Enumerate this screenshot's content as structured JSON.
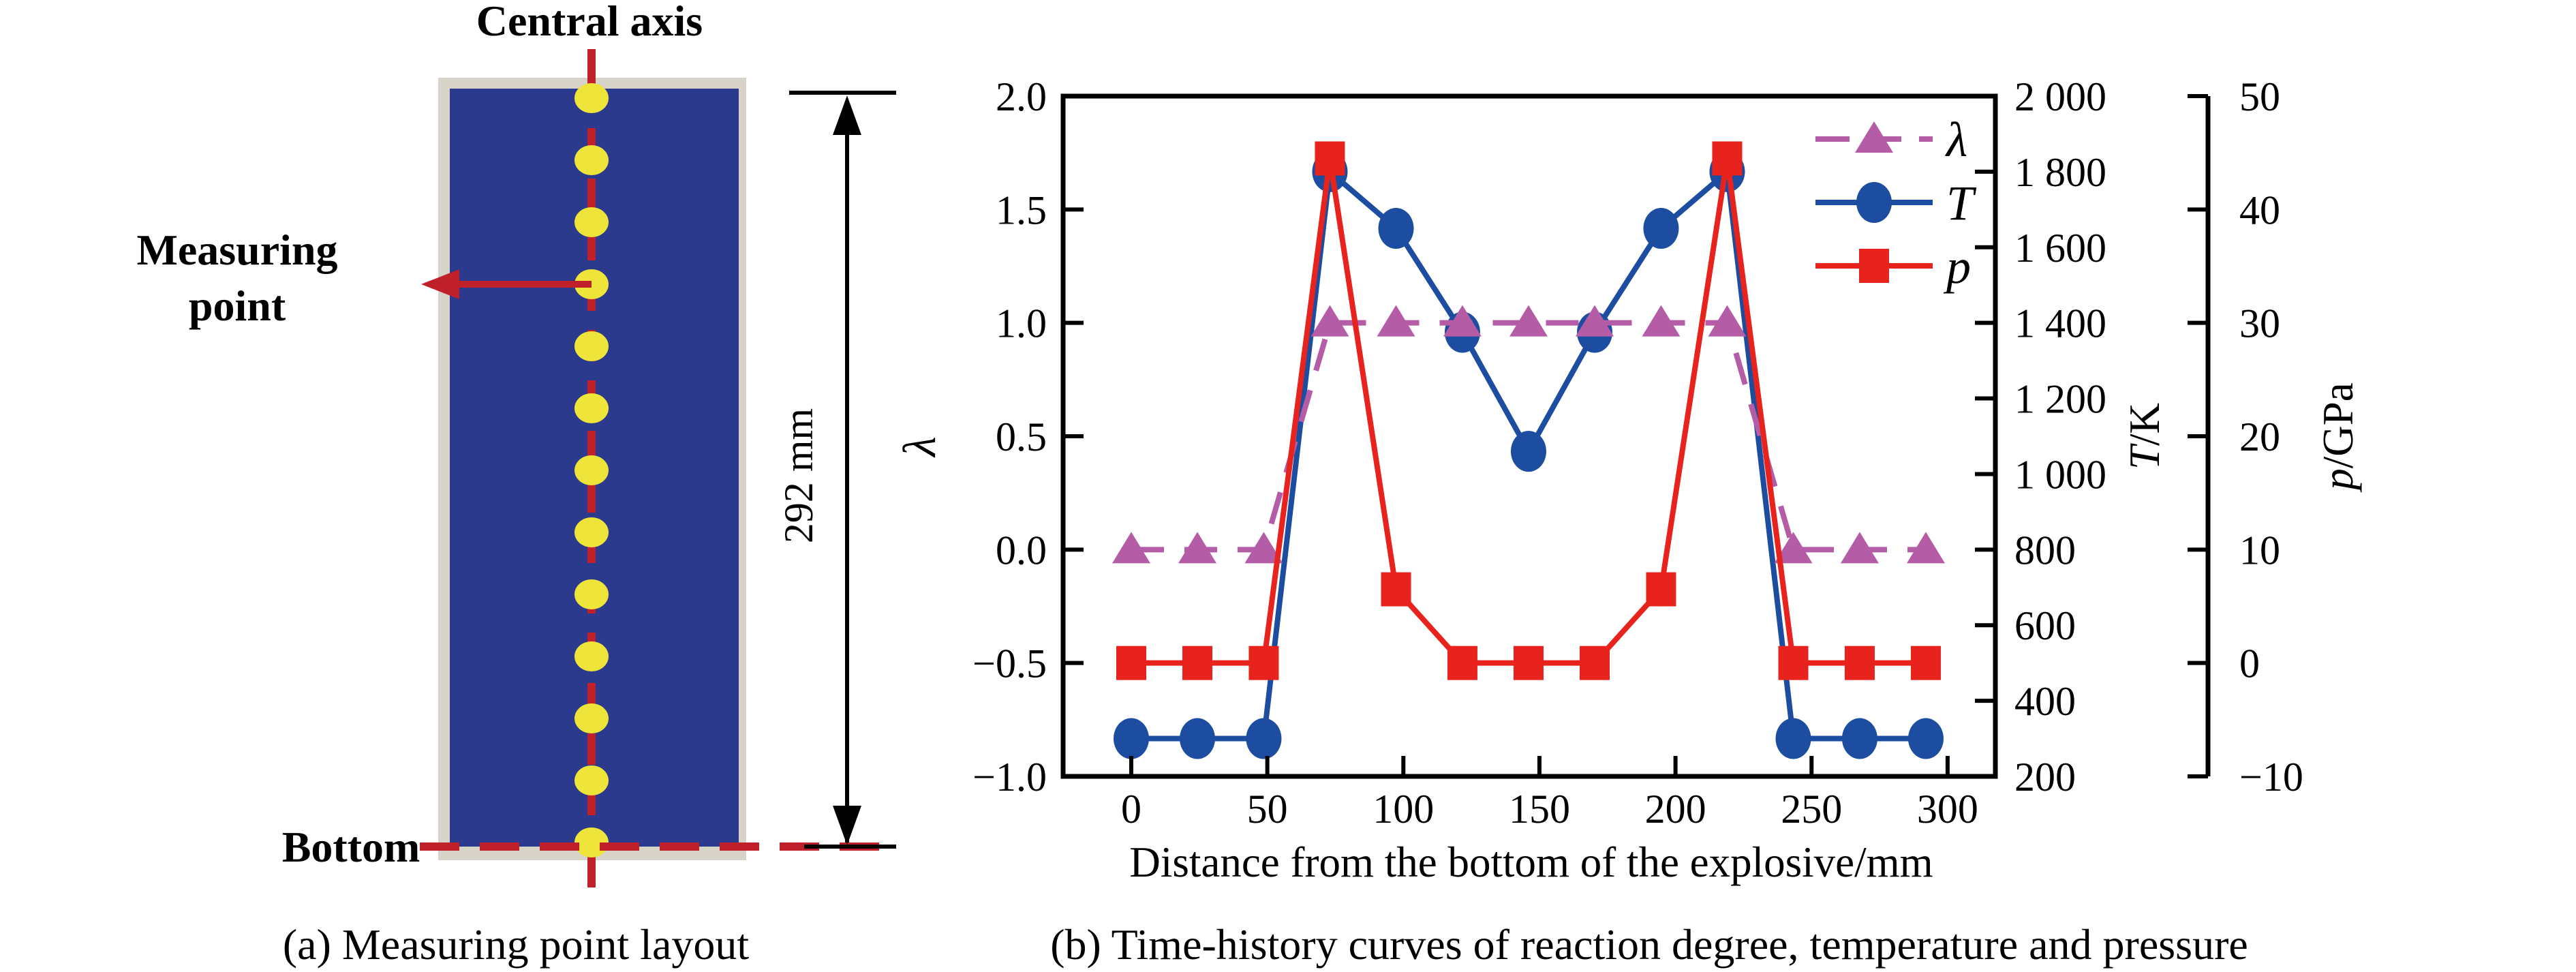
{
  "colors": {
    "ink": "#000000",
    "background": "#ffffff"
  },
  "panel_a": {
    "caption": "(a) Measuring point layout",
    "labels": {
      "central_axis": "Central axis",
      "measuring_point_line1": "Measuring",
      "measuring_point_line2": "point",
      "bottom": "Bottom",
      "dimension": "292 mm"
    },
    "measuring_point_count": 13,
    "colors": {
      "casing": "#d8d3c9",
      "explosive": "#2c3a8d",
      "axis_red": "#c0202a",
      "label_red": "#a91b22",
      "dot_yellow": "#efe53a"
    }
  },
  "chart_data": {
    "type": "line",
    "caption": "(b) Time-history curves of reaction degree, temperature and pressure",
    "xlabel": "Distance from the bottom of the explosive/mm",
    "x_ticks": [
      0,
      50,
      100,
      150,
      200,
      250,
      300
    ],
    "x_tick_labels": [
      "0",
      "50",
      "100",
      "150",
      "200",
      "250",
      "300"
    ],
    "x_range": [
      -25,
      317
    ],
    "grid": false,
    "legend_position": "top-right-inside",
    "x": [
      0,
      24.3,
      48.7,
      73,
      97.3,
      121.7,
      146,
      170.3,
      194.7,
      219,
      243.3,
      267.7,
      292
    ],
    "series": [
      {
        "name": "λ",
        "axis": "lambda",
        "color": "#b55ca6",
        "marker": "triangle",
        "line": "dashed",
        "z": 2,
        "values": [
          0,
          0,
          0,
          1,
          1,
          1,
          1,
          1,
          1,
          1,
          0,
          0,
          0
        ]
      },
      {
        "name": "T",
        "axis": "temperature",
        "color": "#1c4da1",
        "marker": "circle",
        "line": "solid",
        "z": 1,
        "values": [
          300,
          300,
          300,
          1800,
          1650,
          1375,
          1060,
          1375,
          1650,
          1800,
          300,
          300,
          300
        ]
      },
      {
        "name": "p",
        "axis": "pressure",
        "color": "#e8231d",
        "marker": "square",
        "line": "solid",
        "z": 3,
        "values": [
          0,
          0,
          0,
          44.5,
          6.5,
          0,
          0,
          0,
          6.5,
          44.5,
          0,
          0,
          0
        ]
      }
    ],
    "axes": {
      "lambda": {
        "label": "λ",
        "side": "left",
        "range": [
          -1.0,
          2.0
        ],
        "tick_values": [
          2.0,
          1.5,
          1.0,
          0.5,
          0.0,
          -0.5,
          -1.0
        ],
        "tick_labels": [
          "2.0",
          "1.5",
          "1.0",
          "0.5",
          "0.0",
          "−0.5",
          "−1.0"
        ]
      },
      "temperature": {
        "label_symbol": "T",
        "label_unit": "/K",
        "side": "right",
        "range": [
          200,
          2000
        ],
        "tick_values": [
          2000,
          1800,
          1600,
          1400,
          1200,
          1000,
          800,
          600,
          400,
          200
        ],
        "tick_labels": [
          "2 000",
          "1 800",
          "1 600",
          "1 400",
          "1 200",
          "1 000",
          "800",
          "600",
          "400",
          "200"
        ]
      },
      "pressure": {
        "label_symbol": "p",
        "label_unit": "/GPa",
        "side": "right-outer",
        "range": [
          -10,
          50
        ],
        "tick_values": [
          50,
          40,
          30,
          20,
          10,
          0,
          -10
        ],
        "tick_labels": [
          "50",
          "40",
          "30",
          "20",
          "10",
          "0",
          "−10"
        ]
      }
    },
    "legend": [
      {
        "label": "λ",
        "series": "λ"
      },
      {
        "label": "T",
        "series": "T"
      },
      {
        "label": "p",
        "series": "p"
      }
    ]
  }
}
